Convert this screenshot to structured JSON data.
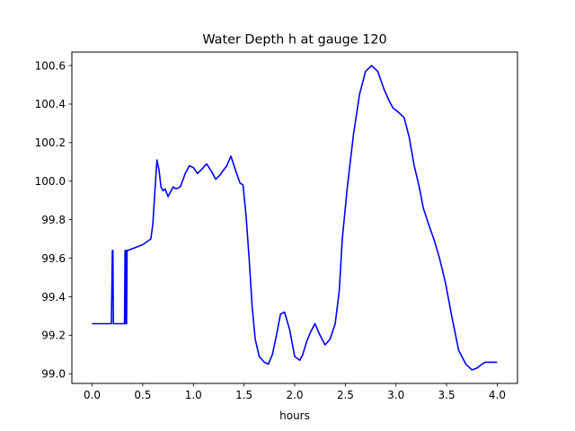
{
  "chart_data": {
    "type": "line",
    "title": "Water Depth h at gauge 120",
    "xlabel": "hours",
    "ylabel": "",
    "xlim": [
      -0.2,
      4.2
    ],
    "ylim": [
      98.95,
      100.67
    ],
    "x_ticks": [
      {
        "value": 0.0,
        "label": "0.0"
      },
      {
        "value": 0.5,
        "label": "0.5"
      },
      {
        "value": 1.0,
        "label": "1.0"
      },
      {
        "value": 1.5,
        "label": "1.5"
      },
      {
        "value": 2.0,
        "label": "2.0"
      },
      {
        "value": 2.5,
        "label": "2.5"
      },
      {
        "value": 3.0,
        "label": "3.0"
      },
      {
        "value": 3.5,
        "label": "3.5"
      },
      {
        "value": 4.0,
        "label": "4.0"
      }
    ],
    "y_ticks": [
      {
        "value": 99.0,
        "label": "99.0"
      },
      {
        "value": 99.2,
        "label": "99.2"
      },
      {
        "value": 99.4,
        "label": "99.4"
      },
      {
        "value": 99.6,
        "label": "99.6"
      },
      {
        "value": 99.8,
        "label": "99.8"
      },
      {
        "value": 100.0,
        "label": "100.0"
      },
      {
        "value": 100.2,
        "label": "100.2"
      },
      {
        "value": 100.4,
        "label": "100.4"
      },
      {
        "value": 100.6,
        "label": "100.6"
      }
    ],
    "grid": false,
    "series": [
      {
        "color": "#0000ff",
        "x": [
          0.0,
          0.19,
          0.2,
          0.205,
          0.21,
          0.215,
          0.22,
          0.32,
          0.325,
          0.33,
          0.335,
          0.34,
          0.345,
          0.35,
          0.4,
          0.5,
          0.58,
          0.6,
          0.62,
          0.64,
          0.66,
          0.68,
          0.7,
          0.72,
          0.75,
          0.78,
          0.8,
          0.83,
          0.87,
          0.92,
          0.96,
          1.0,
          1.04,
          1.08,
          1.13,
          1.18,
          1.22,
          1.26,
          1.3,
          1.33,
          1.37,
          1.42,
          1.46,
          1.49,
          1.52,
          1.55,
          1.58,
          1.61,
          1.65,
          1.7,
          1.74,
          1.78,
          1.82,
          1.86,
          1.9,
          1.95,
          2.0,
          2.05,
          2.08,
          2.12,
          2.16,
          2.2,
          2.25,
          2.3,
          2.35,
          2.4,
          2.44,
          2.47,
          2.52,
          2.58,
          2.64,
          2.7,
          2.76,
          2.82,
          2.88,
          2.93,
          2.97,
          3.02,
          3.08,
          3.13,
          3.18,
          3.23,
          3.27,
          3.32,
          3.38,
          3.43,
          3.49,
          3.55,
          3.62,
          3.69,
          3.75,
          3.8,
          3.85,
          3.88,
          3.92,
          3.96,
          4.0
        ],
        "y": [
          99.26,
          99.26,
          99.64,
          99.64,
          99.26,
          99.26,
          99.26,
          99.26,
          99.64,
          99.26,
          99.64,
          99.26,
          99.64,
          99.64,
          99.65,
          99.67,
          99.7,
          99.78,
          99.95,
          100.11,
          100.06,
          99.97,
          99.95,
          99.96,
          99.92,
          99.95,
          99.97,
          99.96,
          99.97,
          100.04,
          100.08,
          100.07,
          100.04,
          100.06,
          100.09,
          100.05,
          100.01,
          100.03,
          100.06,
          100.08,
          100.13,
          100.05,
          99.99,
          99.98,
          99.82,
          99.6,
          99.35,
          99.18,
          99.09,
          99.06,
          99.05,
          99.1,
          99.2,
          99.31,
          99.32,
          99.23,
          99.09,
          99.07,
          99.1,
          99.17,
          99.22,
          99.26,
          99.2,
          99.15,
          99.18,
          99.26,
          99.43,
          99.7,
          99.97,
          100.24,
          100.45,
          100.57,
          100.6,
          100.57,
          100.48,
          100.42,
          100.38,
          100.36,
          100.33,
          100.23,
          100.08,
          99.97,
          99.86,
          99.78,
          99.69,
          99.6,
          99.47,
          99.3,
          99.12,
          99.05,
          99.02,
          99.03,
          99.05,
          99.06,
          99.06,
          99.06,
          99.06
        ]
      }
    ]
  }
}
